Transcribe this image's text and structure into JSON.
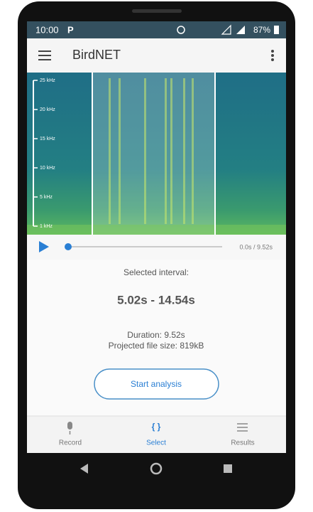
{
  "status_bar": {
    "time": "10:00",
    "notification": "P",
    "battery": "87%"
  },
  "app_bar": {
    "title": "BirdNET"
  },
  "spectrogram": {
    "frequency_labels": [
      "25 kHz",
      "20 kHz",
      "15 kHz",
      "10 kHz",
      "5 kHz",
      "1 kHz"
    ]
  },
  "player": {
    "position": "0.0s / 9.52s"
  },
  "selection": {
    "heading": "Selected interval:",
    "interval": "5.02s - 14.54s",
    "duration": "Duration: 9.52s",
    "file_size": "Projected file size: 819kB"
  },
  "button": {
    "label": "Start analysis"
  },
  "bottom_nav": {
    "items": [
      {
        "label": "Record"
      },
      {
        "icon": "{ }",
        "label": "Select"
      },
      {
        "label": "Results"
      }
    ]
  }
}
